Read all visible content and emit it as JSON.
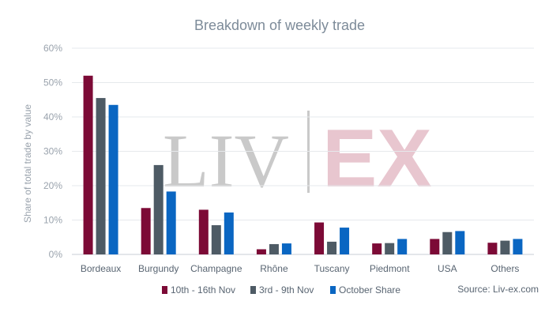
{
  "chart_data": {
    "type": "bar",
    "title": "Breakdown of weekly trade",
    "ylabel": "Share of total trade by value",
    "xlabel": "",
    "ylim": [
      0,
      60
    ],
    "yticks": [
      0,
      10,
      20,
      30,
      40,
      50,
      60
    ],
    "ytick_labels": [
      "0%",
      "10%",
      "20%",
      "30%",
      "40%",
      "50%",
      "60%"
    ],
    "categories": [
      "Bordeaux",
      "Burgundy",
      "Champagne",
      "Rhône",
      "Tuscany",
      "Piedmont",
      "USA",
      "Others"
    ],
    "series": [
      {
        "name": "10th - 16th Nov",
        "color": "#7c0a36",
        "values": [
          52,
          13.5,
          13,
          1.5,
          9.3,
          3.2,
          4.5,
          3.4
        ]
      },
      {
        "name": "3rd - 9th Nov",
        "color": "#4e5b65",
        "values": [
          45.5,
          26,
          8.5,
          3,
          3.7,
          3.3,
          6.5,
          4
        ]
      },
      {
        "name": "October Share",
        "color": "#0a66c2",
        "values": [
          43.5,
          18.3,
          12.2,
          3.2,
          7.8,
          4.5,
          6.8,
          4.5
        ]
      }
    ],
    "grid": true,
    "legend_position": "bottom"
  },
  "watermark": {
    "left": "LIV",
    "right": "EX"
  },
  "source": "Source: Liv-ex.com"
}
